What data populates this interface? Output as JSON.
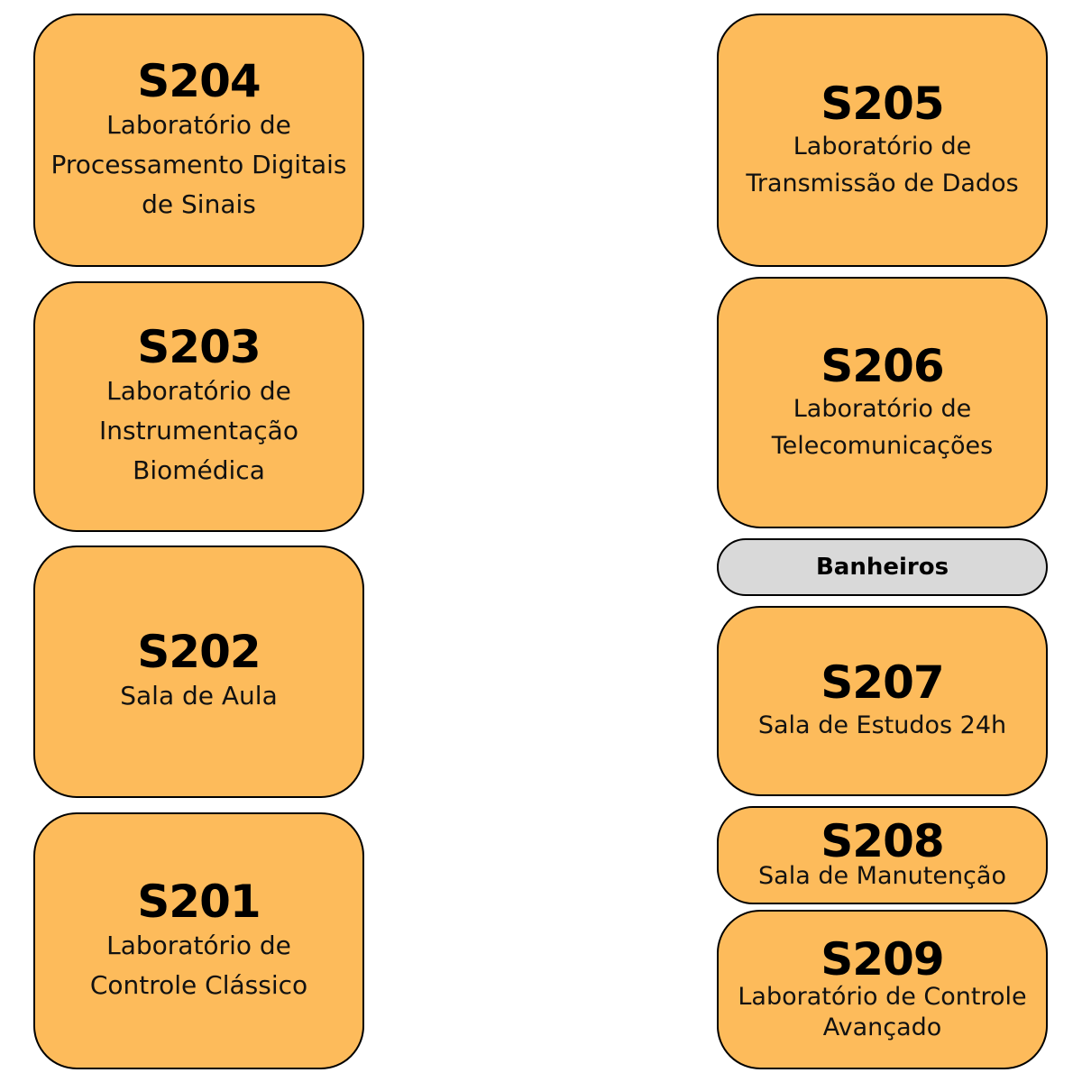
{
  "colors": {
    "room_fill": "#fdbb5b",
    "bathroom_fill": "#d9d9d9",
    "border": "#000000",
    "background": "#ffffff"
  },
  "rooms": {
    "s204": {
      "code": "S204",
      "description": "Laboratório de\nProcessamento Digitais\nde Sinais"
    },
    "s203": {
      "code": "S203",
      "description": "Laboratório de\nInstrumentação\nBiomédica"
    },
    "s202": {
      "code": "S202",
      "description": "Sala de Aula"
    },
    "s201": {
      "code": "S201",
      "description": "Laboratório de\nControle Clássico"
    },
    "s205": {
      "code": "S205",
      "description": "Laboratório de\nTransmissão de Dados"
    },
    "s206": {
      "code": "S206",
      "description": "Laboratório de\nTelecomunicações"
    },
    "s207": {
      "code": "S207",
      "description": "Sala de Estudos 24h"
    },
    "s208": {
      "code": "S208",
      "description": "Sala de Manutenção"
    },
    "s209": {
      "code": "S209",
      "description": "Laboratório de Controle\nAvançado"
    }
  },
  "bathrooms": {
    "label": "Banheiros"
  }
}
